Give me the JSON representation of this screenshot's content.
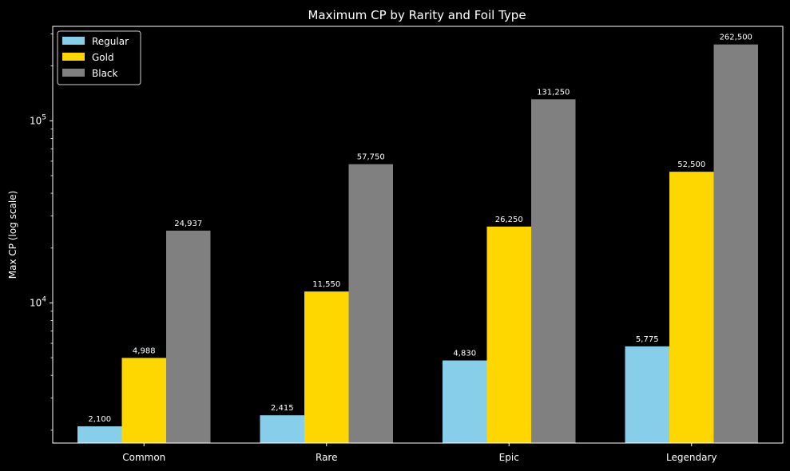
{
  "chart_data": {
    "type": "bar",
    "title": "Maximum CP by Rarity and Foil Type",
    "xlabel": "",
    "ylabel": "Max CP (log scale)",
    "yscale": "log",
    "ylim": [
      1700,
      330000
    ],
    "y_ticks": [
      {
        "value": 10000,
        "base": "10",
        "exp": "4"
      },
      {
        "value": 100000,
        "base": "10",
        "exp": "5"
      }
    ],
    "categories": [
      "Common",
      "Rare",
      "Epic",
      "Legendary"
    ],
    "series": [
      {
        "name": "Regular",
        "color": "#87CEEB",
        "values": [
          2100,
          2415,
          4830,
          5775
        ],
        "labels": [
          "2,100",
          "2,415",
          "4,830",
          "5,775"
        ]
      },
      {
        "name": "Gold",
        "color": "#FFD700",
        "values": [
          4988,
          11550,
          26250,
          52500
        ],
        "labels": [
          "4,988",
          "11,550",
          "26,250",
          "52,500"
        ]
      },
      {
        "name": "Black",
        "color": "#808080",
        "values": [
          24937,
          57750,
          131250,
          262500
        ],
        "labels": [
          "24,937",
          "57,750",
          "131,250",
          "262,500"
        ]
      }
    ],
    "legend": "top-left",
    "grid": false,
    "background": "#000000",
    "text_color": "#ffffff"
  }
}
